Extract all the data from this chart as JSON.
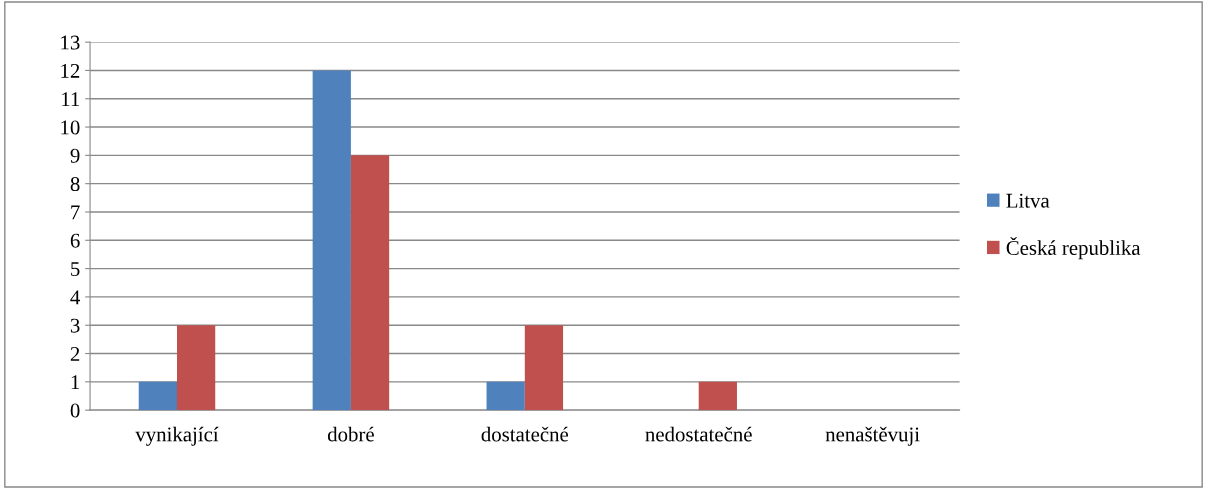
{
  "chart_data": {
    "type": "bar",
    "categories": [
      "vynikající",
      "dobré",
      "dostatečné",
      "nedostatečné",
      "nenaštěvuji"
    ],
    "series": [
      {
        "name": "Litva",
        "color": "#4f81bd",
        "values": [
          1,
          12,
          1,
          0,
          0
        ]
      },
      {
        "name": "Česká republika",
        "color": "#c0504d",
        "values": [
          3,
          9,
          3,
          1,
          0
        ]
      }
    ],
    "ylim": [
      0,
      13
    ],
    "yticks": [
      0,
      1,
      2,
      3,
      4,
      5,
      6,
      7,
      8,
      9,
      10,
      11,
      12,
      13
    ],
    "grid": "y",
    "legend": "right"
  }
}
